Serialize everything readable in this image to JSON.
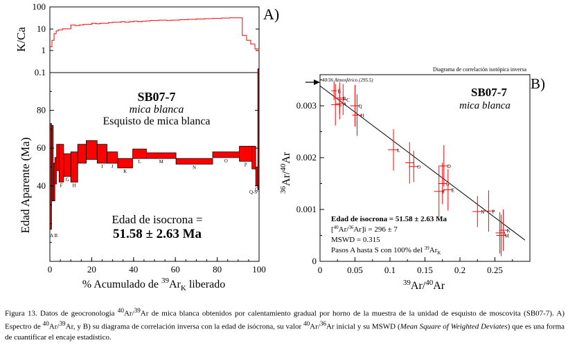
{
  "colors": {
    "accent": "#ff0000",
    "line": "#000000",
    "background": "#ffffff"
  },
  "chart_data": [
    {
      "type": "area",
      "panel_label": "A)",
      "title": "SB07-7",
      "subtitle": "mica blanca",
      "subtitle2": "Esquisto de mica blanca",
      "kca_ylabel": "K/Ca",
      "kca_ylim": [
        0.1,
        100
      ],
      "kca_yticks": [
        "100",
        "10",
        "1",
        "0.1"
      ],
      "kca_x": [
        0,
        1,
        2,
        3,
        4,
        6,
        8,
        10,
        12,
        14,
        16,
        18,
        20,
        22,
        24,
        26,
        28,
        30,
        32,
        34,
        36,
        38,
        40,
        42,
        44,
        46,
        48,
        50,
        52,
        54,
        56,
        58,
        60,
        62,
        64,
        66,
        68,
        70,
        72,
        74,
        76,
        78,
        80,
        82,
        84,
        86,
        88,
        90,
        92,
        94,
        96,
        98,
        100
      ],
      "kca_values": [
        1.5,
        3,
        6,
        8,
        9,
        10,
        10,
        15,
        14,
        15,
        16,
        16,
        18,
        17,
        18,
        18,
        19,
        20,
        20,
        21,
        20,
        21,
        22,
        21,
        22,
        23,
        24,
        24,
        25,
        25,
        24,
        25,
        25,
        26,
        26,
        27,
        27,
        28,
        28,
        29,
        29,
        30,
        30,
        31,
        31,
        32,
        32,
        32,
        5,
        3,
        2,
        1.2,
        1
      ],
      "xlabel_prefix": "% Acumulado de ",
      "xlabel_sup": "39",
      "xlabel_mid": "Ar",
      "xlabel_sub": "K",
      "xlabel_suffix": " liberado",
      "ylabel": "Edad Aparente (Ma)",
      "xlim": [
        0,
        100
      ],
      "ylim": [
        0,
        100
      ],
      "xticks": [
        "0",
        "20",
        "40",
        "60",
        "80",
        "100"
      ],
      "yticks": [
        "40",
        "60",
        "80"
      ],
      "steps": [
        {
          "label": "A",
          "x0": 0.0,
          "x1": 0.8,
          "age": 45,
          "err": 28
        },
        {
          "label": "B",
          "x0": 0.8,
          "x1": 1.6,
          "age": 52,
          "err": 20
        },
        {
          "label": "C",
          "x0": 1.6,
          "x1": 2.4,
          "age": 42,
          "err": 10
        },
        {
          "label": "D",
          "x0": 2.4,
          "x1": 3.2,
          "age": 48,
          "err": 7
        },
        {
          "label": "E",
          "x0": 3.2,
          "x1": 4.4,
          "age": 55,
          "err": 7
        },
        {
          "label": "F",
          "x0": 4.4,
          "x1": 6.6,
          "age": 52,
          "err": 10
        },
        {
          "label": "G",
          "x0": 6.6,
          "x1": 10.0,
          "age": 51,
          "err": 6
        },
        {
          "label": "H",
          "x0": 10.0,
          "x1": 13.3,
          "age": 50,
          "err": 8
        },
        {
          "label": "",
          "x0": 13.3,
          "x1": 17.4,
          "age": 57,
          "err": 5
        },
        {
          "label": "",
          "x0": 17.4,
          "x1": 22.6,
          "age": 59,
          "err": 5
        },
        {
          "label": "I",
          "x0": 22.6,
          "x1": 27.3,
          "age": 57,
          "err": 5
        },
        {
          "label": "J",
          "x0": 27.3,
          "x1": 32.4,
          "age": 55,
          "err": 3
        },
        {
          "label": "K",
          "x0": 32.4,
          "x1": 39.6,
          "age": 52,
          "err": 2.5
        },
        {
          "label": "L",
          "x0": 39.6,
          "x1": 46.2,
          "age": 57,
          "err": 2.5
        },
        {
          "label": "M",
          "x0": 46.2,
          "x1": 60.3,
          "age": 56,
          "err": 1.5
        },
        {
          "label": "N",
          "x0": 60.3,
          "x1": 77.8,
          "age": 53,
          "err": 1.5
        },
        {
          "label": "O",
          "x0": 77.8,
          "x1": 90.6,
          "age": 56.5,
          "err": 1.5
        },
        {
          "label": "P",
          "x0": 90.6,
          "x1": 96.6,
          "age": 57,
          "err": 4
        },
        {
          "label": "",
          "x0": 96.6,
          "x1": 98.4,
          "age": 55,
          "err": 6
        },
        {
          "label": "Q",
          "x0": 98.4,
          "x1": 99.4,
          "age": 45,
          "err": 5
        },
        {
          "label": "",
          "x0": 99.4,
          "x1": 100.0,
          "age": 70,
          "err": 32
        }
      ],
      "endpoint_labels": {
        "left": "A B",
        "right": "Q-S"
      },
      "annotation_line1": "Edad de isocrona =",
      "annotation_line2": "51.58 ± 2.63 Ma"
    },
    {
      "type": "scatter",
      "panel_label": "B)",
      "header": "Diagrama de correlación isotópica inversa",
      "title": "SB07-7",
      "subtitle": "mica blanca",
      "atmos_note": "40/36 Atmosférico (295.5)",
      "xlabel_sup1": "39",
      "xlabel_mid": "Ar/",
      "xlabel_sup2": "40",
      "xlabel_end": "Ar",
      "ylabel_sup1": "36",
      "ylabel_mid": "Ar/",
      "ylabel_sup2": "40",
      "ylabel_end": "Ar",
      "xlim": [
        0,
        0.3
      ],
      "ylim": [
        0,
        0.0036
      ],
      "xticks": [
        {
          "v": 0,
          "t": "0"
        },
        {
          "v": 0.05,
          "t": "0.05"
        },
        {
          "v": 0.1,
          "t": "0.1"
        },
        {
          "v": 0.15,
          "t": "0.15"
        },
        {
          "v": 0.2,
          "t": "0.2"
        },
        {
          "v": 0.25,
          "t": "0.25"
        }
      ],
      "yticks": [
        {
          "v": 0,
          "t": "0"
        },
        {
          "v": 0.001,
          "t": "0.001"
        },
        {
          "v": 0.002,
          "t": "0.002"
        },
        {
          "v": 0.003,
          "t": "0.003"
        }
      ],
      "fit_line": {
        "x": [
          0,
          0.293
        ],
        "y": [
          0.003384,
          0.00041
        ]
      },
      "points": [
        {
          "label": "B",
          "x": 0.02,
          "y": 0.00329,
          "ex": 0.004,
          "ey": 0.00018
        },
        {
          "label": "R",
          "x": 0.028,
          "y": 0.00315,
          "ex": 0.006,
          "ey": 0.0003
        },
        {
          "label": "C",
          "x": 0.033,
          "y": 0.00312,
          "ex": 0.005,
          "ey": 0.0003
        },
        {
          "label": "S",
          "x": 0.022,
          "y": 0.00302,
          "ex": 0.006,
          "ey": 0.0004
        },
        {
          "label": "A",
          "x": 0.028,
          "y": 0.00304,
          "ex": 0.006,
          "ey": 0.0003
        },
        {
          "label": "Q",
          "x": 0.05,
          "y": 0.003,
          "ex": 0.007,
          "ey": 0.0004
        },
        {
          "label": "H",
          "x": 0.053,
          "y": 0.00282,
          "ex": 0.007,
          "ey": 0.0004
        },
        {
          "label": "L",
          "x": 0.105,
          "y": 0.00215,
          "ex": 0.008,
          "ey": 0.0004
        },
        {
          "label": "I",
          "x": 0.128,
          "y": 0.0019,
          "ex": 0.006,
          "ey": 0.0004
        },
        {
          "label": "O",
          "x": 0.134,
          "y": 0.00183,
          "ex": 0.007,
          "ey": 0.0003
        },
        {
          "label": "D",
          "x": 0.177,
          "y": 0.00184,
          "ex": 0.006,
          "ey": 0.0004
        },
        {
          "label": "G",
          "x": 0.175,
          "y": 0.0015,
          "ex": 0.006,
          "ey": 0.0004
        },
        {
          "label": "F",
          "x": 0.17,
          "y": 0.00135,
          "ex": 0.007,
          "ey": 0.0005
        },
        {
          "label": "E",
          "x": 0.183,
          "y": 0.00138,
          "ex": 0.007,
          "ey": 0.0004
        },
        {
          "label": "N",
          "x": 0.225,
          "y": 0.00096,
          "ex": 0.007,
          "ey": 0.0003
        },
        {
          "label": "P",
          "x": 0.241,
          "y": 0.00097,
          "ex": 0.008,
          "ey": 0.0004
        },
        {
          "label": "J",
          "x": 0.257,
          "y": 0.00055,
          "ex": 0.006,
          "ey": 0.0004
        },
        {
          "label": "M",
          "x": 0.259,
          "y": 0.0005,
          "ex": 0.007,
          "ey": 0.0004
        },
        {
          "label": "K",
          "x": 0.262,
          "y": 0.0006,
          "ex": 0.006,
          "ey": 0.0004
        }
      ],
      "stats": {
        "age_line": "Edad de isocrona = 51.58 ± 2.63 Ma",
        "ratio_open": "[",
        "ratio_sup1": "40",
        "ratio_mid": "Ar/",
        "ratio_sup2": "36",
        "ratio_end": "Ar]i = 296 ± 7",
        "mswd_line": "MSWD = 0.315",
        "steps_text": "Pasos A hasta S con 100% del ",
        "steps_sup": "39",
        "steps_mid": "Ar",
        "steps_sub": "K"
      }
    }
  ],
  "caption": {
    "fig": "Figura 13. Datos de geocronología ",
    "s1": "40",
    "t1": "Ar/",
    "s2": "39",
    "t2": "Ar de mica blanca obtenidos por calentamiento gradual por horno de la muestra de la unidad de esquisto de moscovita (SB07-7). A) Espectro de ",
    "s3": "40",
    "t3": "Ar/",
    "s4": "39",
    "t4": "Ar, y B) su diagrama de correlación inversa con la edad de isócrona, su valor ",
    "s5": "40",
    "t5": "Ar/",
    "s6": "36",
    "t6": "Ar inicial y su MSWD (",
    "italic": "Mean Square of Weighted Deviates",
    "t7": ") que es una forma de cuantificar el encaje estadístico."
  }
}
